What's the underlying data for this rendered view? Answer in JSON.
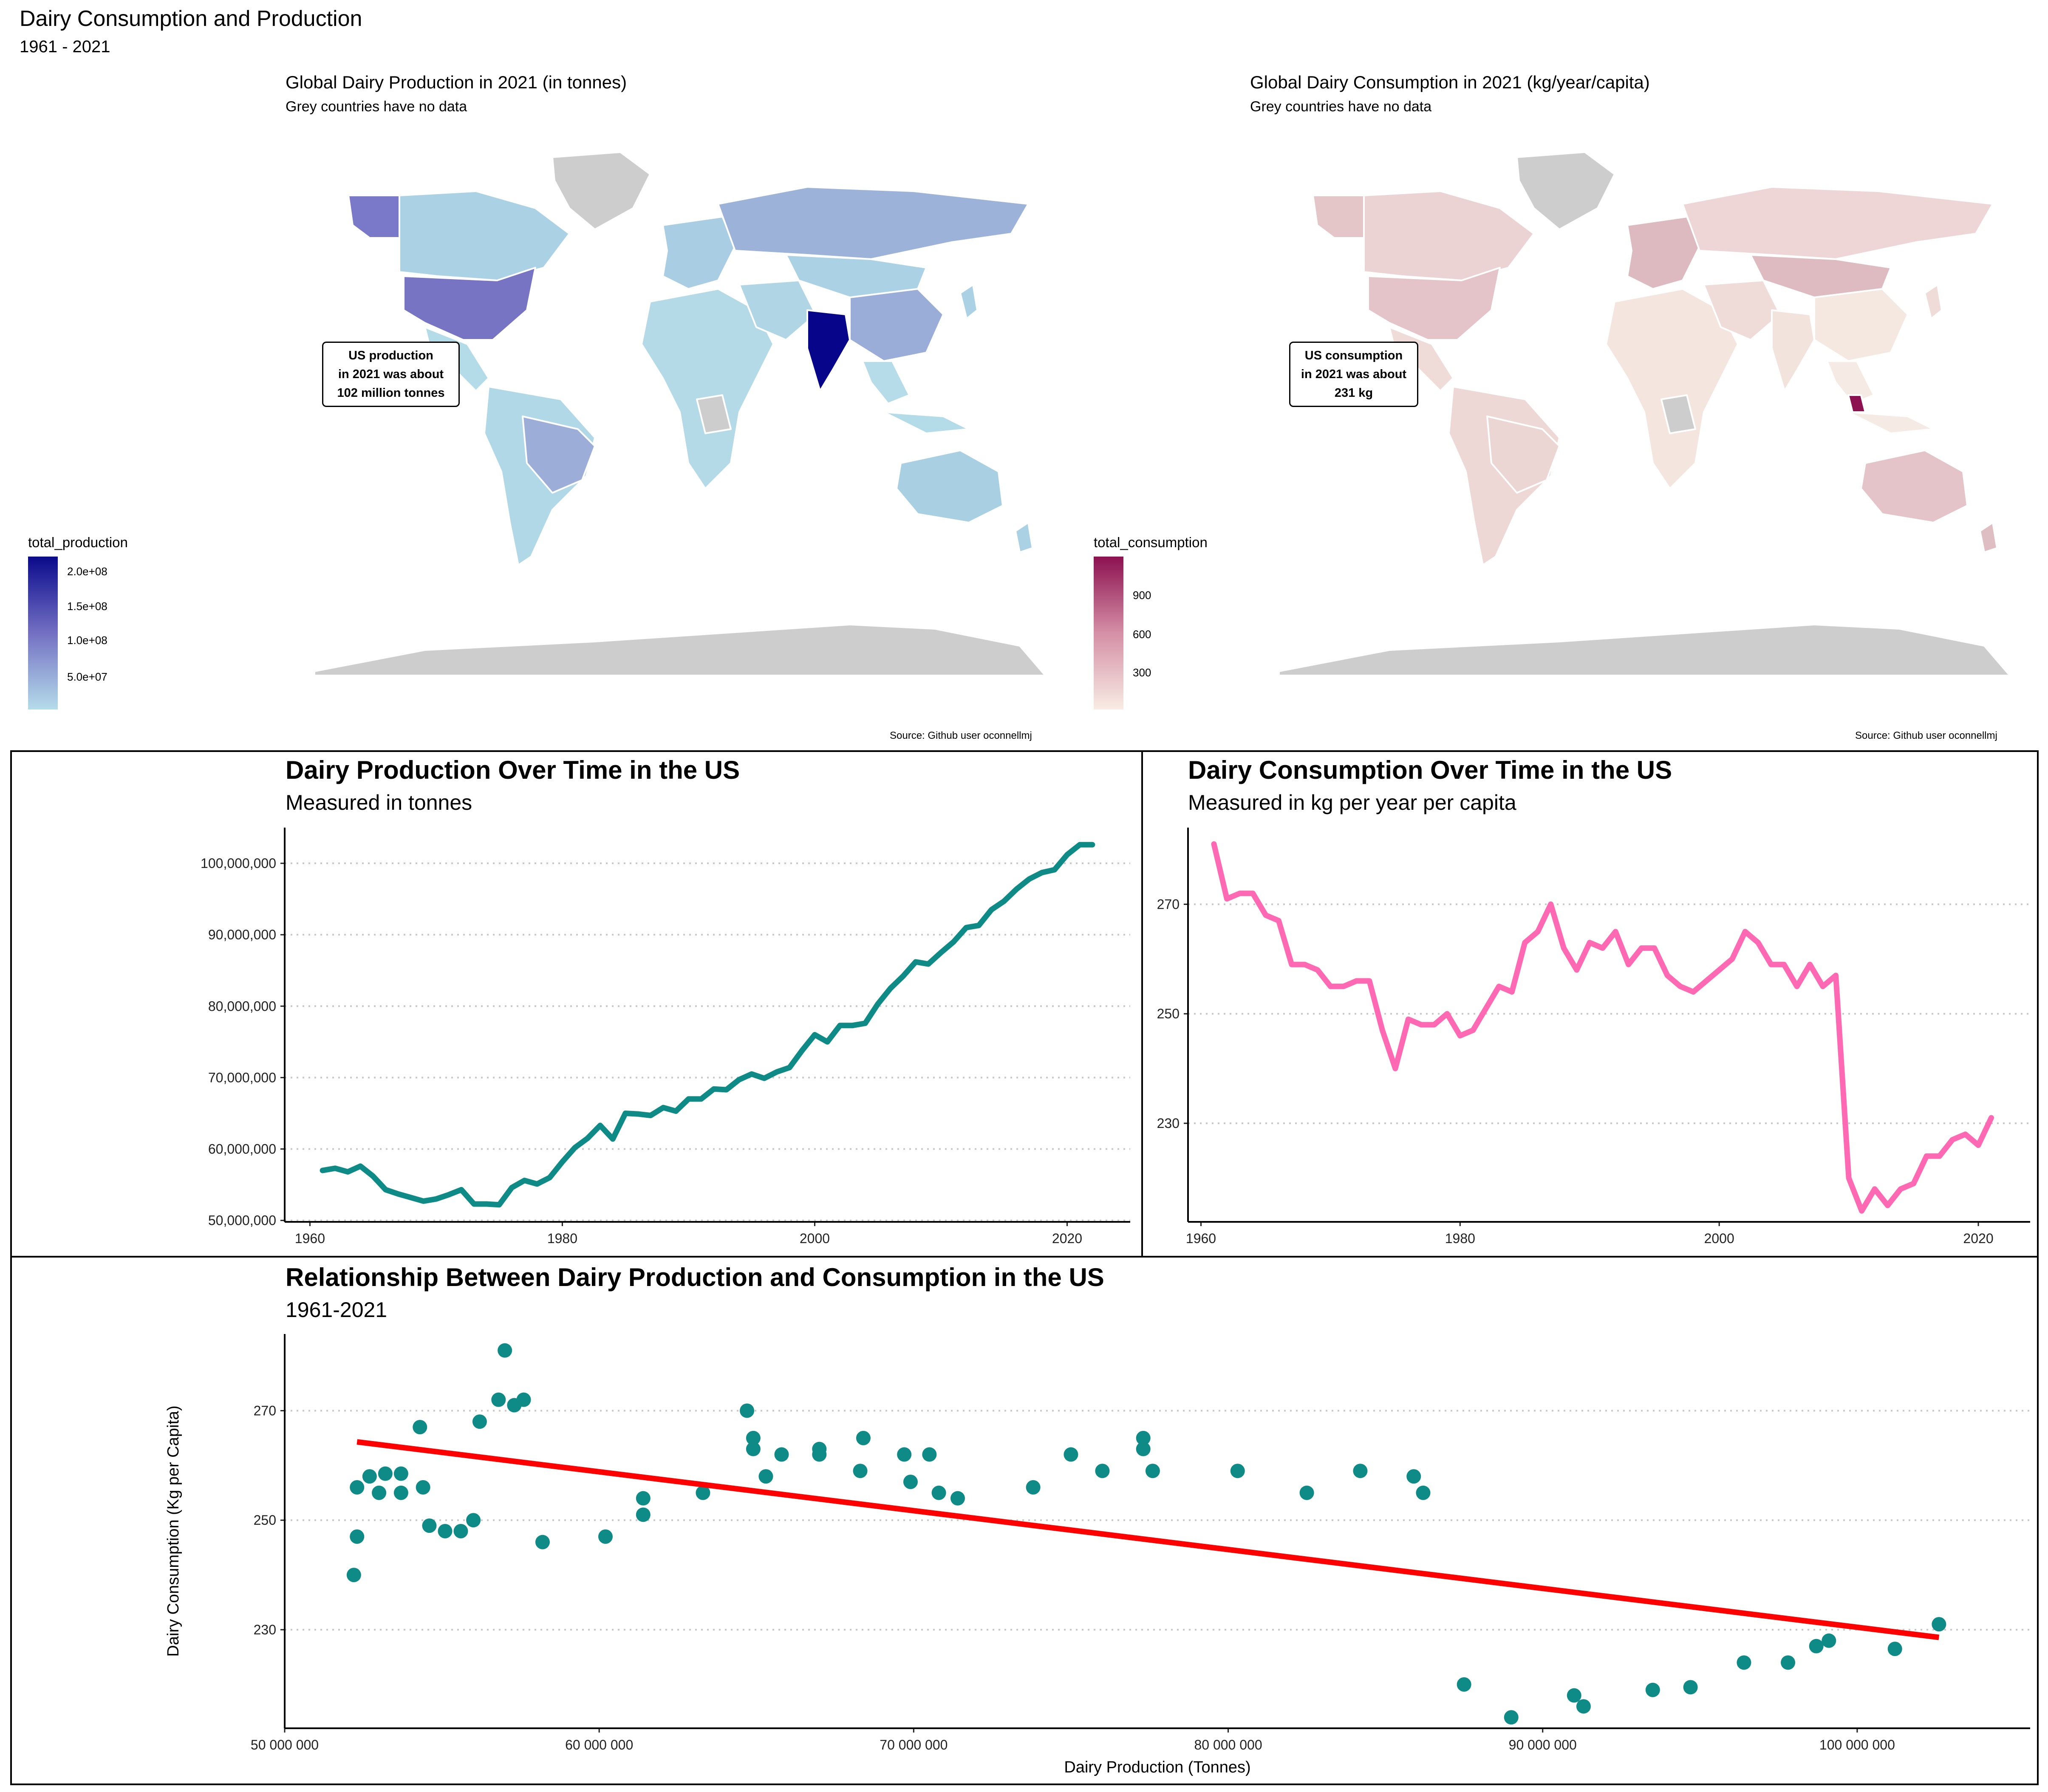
{
  "header": {
    "title": "Dairy Consumption and Production",
    "subtitle": "1961 - 2021"
  },
  "maps": {
    "production": {
      "title": "Global Dairy Production in 2021 (in tonnes)",
      "subtitle": "Grey countries have no data",
      "note": [
        "US production",
        "in 2021 was about",
        "102 million tonnes"
      ],
      "legend_title": "total_production",
      "legend_ticks": [
        "2.0e+08",
        "1.5e+08",
        "1.0e+08",
        "5.0e+07"
      ],
      "source": "Source: Github user oconnellmj",
      "colors": {
        "low": "#b5dcea",
        "high": "#0a0a8c"
      }
    },
    "consumption": {
      "title": "Global Dairy Consumption in 2021 (kg/year/capita)",
      "subtitle": "Grey countries have no data",
      "note": [
        "US consumption",
        "in 2021 was about",
        "231 kg"
      ],
      "legend_title": "total_consumption",
      "legend_ticks": [
        "900",
        "600",
        "300"
      ],
      "source": "Source: Github user oconnellmj",
      "colors": {
        "low": "#f8ece4",
        "high": "#8c1150"
      }
    }
  },
  "chart_data": [
    {
      "type": "line",
      "title": "Dairy Production Over Time in the US",
      "subtitle": "Measured in tonnes",
      "xlabel": "",
      "ylabel": "",
      "xlim": [
        1958,
        2025
      ],
      "ylim": [
        49800000,
        105000000
      ],
      "x_ticks": [
        1960,
        1980,
        2000,
        2020
      ],
      "y_ticks": [
        50000000,
        60000000,
        70000000,
        80000000,
        90000000,
        100000000
      ],
      "y_tick_labels": [
        "50,000,000",
        "60,000,000",
        "70,000,000",
        "80,000,000",
        "90,000,000",
        "100,000,000"
      ],
      "color": "#0e8a87",
      "x": [
        1961,
        1962,
        1963,
        1964,
        1965,
        1966,
        1967,
        1968,
        1969,
        1970,
        1971,
        1972,
        1973,
        1974,
        1975,
        1976,
        1977,
        1978,
        1979,
        1980,
        1981,
        1982,
        1983,
        1984,
        1985,
        1986,
        1987,
        1988,
        1989,
        1990,
        1991,
        1992,
        1993,
        1994,
        1995,
        1996,
        1997,
        1998,
        1999,
        2000,
        2001,
        2002,
        2003,
        2004,
        2005,
        2006,
        2007,
        2008,
        2009,
        2010,
        2011,
        2012,
        2013,
        2014,
        2015,
        2016,
        2017,
        2018,
        2019,
        2020,
        2021,
        2022
      ],
      "y": [
        57000000,
        57300000,
        56800000,
        57600000,
        56200000,
        54300000,
        53700000,
        53200000,
        52700000,
        53000000,
        53600000,
        54300000,
        52300000,
        52300000,
        52200000,
        54600000,
        55600000,
        55100000,
        56000000,
        58200000,
        60200000,
        61500000,
        63300000,
        61400000,
        65000000,
        64900000,
        64700000,
        65800000,
        65300000,
        67000000,
        67000000,
        68400000,
        68300000,
        69700000,
        70500000,
        69900000,
        70800000,
        71400000,
        73800000,
        76000000,
        75000000,
        77300000,
        77300000,
        77600000,
        80300000,
        82500000,
        84200000,
        86200000,
        85900000,
        87500000,
        89000000,
        91000000,
        91300000,
        93500000,
        94700000,
        96400000,
        97800000,
        98700000,
        99100000,
        101200000,
        102600000,
        102600000
      ]
    },
    {
      "type": "line",
      "title": "Dairy Consumption Over Time in the US",
      "subtitle": "Measured in kg per year per capita",
      "xlabel": "",
      "ylabel": "",
      "xlim": [
        1959,
        2024
      ],
      "ylim": [
        212,
        284
      ],
      "x_ticks": [
        1960,
        1980,
        2000,
        2020
      ],
      "y_ticks": [
        230,
        250,
        270
      ],
      "color": "#ff69b4",
      "x": [
        1961,
        1962,
        1963,
        1964,
        1965,
        1966,
        1967,
        1968,
        1969,
        1970,
        1971,
        1972,
        1973,
        1974,
        1975,
        1976,
        1977,
        1978,
        1979,
        1980,
        1981,
        1982,
        1983,
        1984,
        1985,
        1986,
        1987,
        1988,
        1989,
        1990,
        1991,
        1992,
        1993,
        1994,
        1995,
        1996,
        1997,
        1998,
        1999,
        2000,
        2001,
        2002,
        2003,
        2004,
        2005,
        2006,
        2007,
        2008,
        2009,
        2010,
        2011,
        2012,
        2013,
        2014,
        2015,
        2016,
        2017,
        2018,
        2019,
        2020,
        2021
      ],
      "y": [
        281,
        271,
        272,
        272,
        268,
        267,
        259,
        259,
        258,
        255,
        255,
        256,
        256,
        247,
        240,
        249,
        248,
        248,
        250,
        246,
        247,
        251,
        255,
        254,
        263,
        265,
        270,
        262,
        258,
        263,
        262,
        265,
        259,
        262,
        262,
        257,
        255,
        254,
        256,
        258,
        260,
        265,
        263,
        259,
        259,
        255,
        259,
        255,
        257,
        220,
        214,
        218,
        215,
        218,
        219,
        224,
        224,
        227,
        228,
        226,
        231
      ]
    },
    {
      "type": "scatter",
      "title": "Relationship Between Dairy Production and Consumption in the US",
      "subtitle": "1961-2021",
      "xlabel": "Dairy Production (Tonnes)",
      "ylabel": "Dairy Consumption (Kg per Capita)",
      "xlim": [
        50000000,
        105500000
      ],
      "ylim": [
        212,
        284
      ],
      "x_ticks": [
        50000000,
        60000000,
        70000000,
        80000000,
        90000000,
        100000000
      ],
      "x_tick_labels": [
        "50 000 000",
        "60 000 000",
        "70 000 000",
        "80 000 000",
        "90 000 000",
        "100 000 000"
      ],
      "y_ticks": [
        230,
        250,
        270
      ],
      "point_color": "#0e8a87",
      "trend_color": "#ff0000",
      "trend": {
        "x": [
          52300000,
          102600000
        ],
        "y": [
          264.3,
          228.6
        ]
      },
      "points": [
        [
          52200000,
          240
        ],
        [
          52300000,
          256
        ],
        [
          52300000,
          247
        ],
        [
          52700000,
          258
        ],
        [
          53000000,
          255
        ],
        [
          53200000,
          258.5
        ],
        [
          53700000,
          255
        ],
        [
          53700000,
          258.5
        ],
        [
          54300000,
          267
        ],
        [
          54400000,
          256
        ],
        [
          54600000,
          249
        ],
        [
          55100000,
          248
        ],
        [
          55600000,
          248
        ],
        [
          56000000,
          250
        ],
        [
          56200000,
          268
        ],
        [
          56800000,
          272
        ],
        [
          57000000,
          281
        ],
        [
          57300000,
          271
        ],
        [
          57600000,
          272
        ],
        [
          58200000,
          246
        ],
        [
          60200000,
          247
        ],
        [
          61400000,
          254
        ],
        [
          61400000,
          251
        ],
        [
          63300000,
          255
        ],
        [
          64700000,
          270
        ],
        [
          64900000,
          265
        ],
        [
          64900000,
          263
        ],
        [
          65300000,
          258
        ],
        [
          65800000,
          262
        ],
        [
          67000000,
          263
        ],
        [
          67000000,
          262
        ],
        [
          68300000,
          259
        ],
        [
          68400000,
          265
        ],
        [
          69700000,
          262
        ],
        [
          69900000,
          257
        ],
        [
          70500000,
          262
        ],
        [
          70800000,
          255
        ],
        [
          71400000,
          254
        ],
        [
          73800000,
          256
        ],
        [
          75000000,
          262
        ],
        [
          76000000,
          259
        ],
        [
          77300000,
          265
        ],
        [
          77300000,
          263
        ],
        [
          77600000,
          259
        ],
        [
          80300000,
          259
        ],
        [
          82500000,
          255
        ],
        [
          84200000,
          259
        ],
        [
          85900000,
          258
        ],
        [
          86200000,
          255
        ],
        [
          87500000,
          220
        ],
        [
          89000000,
          214
        ],
        [
          91000000,
          218
        ],
        [
          91300000,
          216
        ],
        [
          93500000,
          219
        ],
        [
          94700000,
          219.5
        ],
        [
          96400000,
          224
        ],
        [
          97800000,
          224
        ],
        [
          98700000,
          227
        ],
        [
          99100000,
          228
        ],
        [
          101200000,
          226.5
        ],
        [
          102600000,
          231
        ]
      ]
    }
  ]
}
